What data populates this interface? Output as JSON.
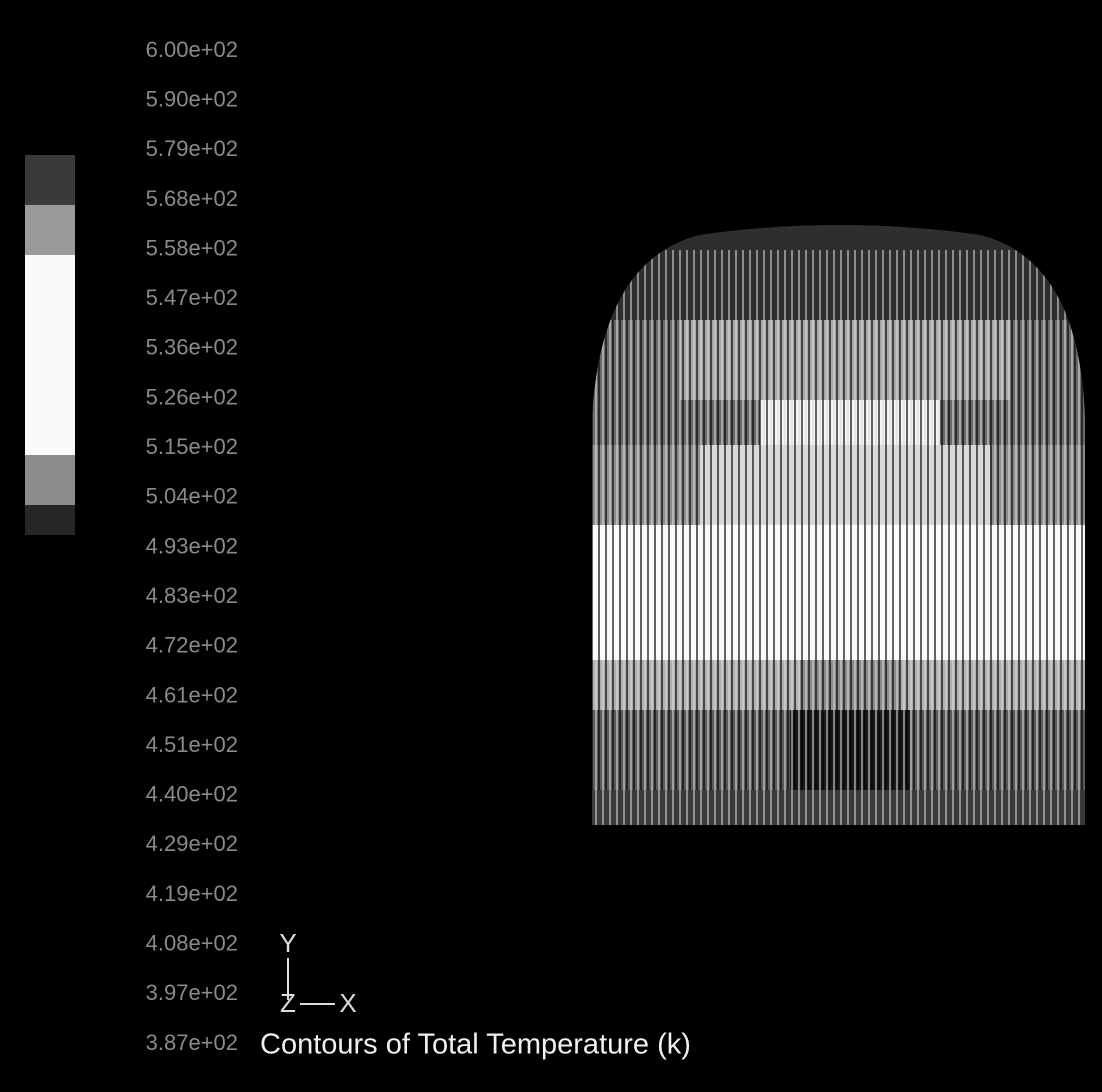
{
  "legend": {
    "labels": [
      "6.00e+02",
      "5.90e+02",
      "5.79e+02",
      "5.68e+02",
      "5.58e+02",
      "5.47e+02",
      "5.36e+02",
      "5.26e+02",
      "5.15e+02",
      "5.04e+02",
      "4.93e+02",
      "4.83e+02",
      "4.72e+02",
      "4.61e+02",
      "4.51e+02",
      "4.40e+02",
      "4.29e+02",
      "4.19e+02",
      "4.08e+02",
      "3.97e+02",
      "3.87e+02"
    ]
  },
  "axes": {
    "y": "Y",
    "z": "Z",
    "x": "X"
  },
  "title": "Contours of Total Temperature (k)"
}
